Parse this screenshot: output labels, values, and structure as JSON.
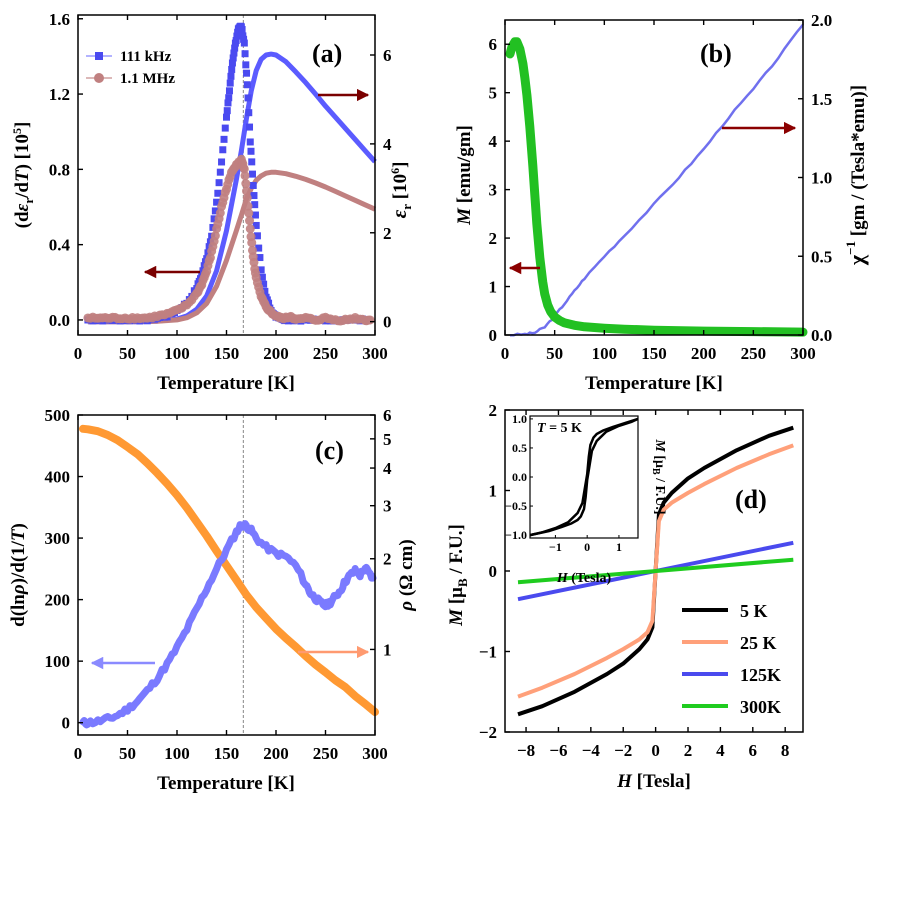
{
  "chart_data": [
    {
      "id": "a",
      "type": "scatter",
      "panel_label": "(a)",
      "xlabel": "Temperature [K]",
      "ylabel_left": "(dεr/dT) [10^5]",
      "ylabel_left_parts": [
        "(d",
        "ε",
        "r",
        "/d",
        "T",
        ") [10",
        "5",
        "]"
      ],
      "ylabel_right": "εr [10^6]",
      "ylabel_right_parts": [
        "ε",
        "r",
        " [10",
        "6",
        "]"
      ],
      "xlim": [
        0,
        300
      ],
      "ylim_left": [
        -0.08,
        1.62
      ],
      "ylim_right": [
        -0.3,
        6.9
      ],
      "xticks": [
        0,
        50,
        100,
        150,
        200,
        250,
        300
      ],
      "yticks_left": [
        "0.0",
        "0.4",
        "0.8",
        "1.2",
        "1.6"
      ],
      "yticks_right": [
        "0",
        "2",
        "4",
        "6"
      ],
      "vline_x": 167,
      "legend": [
        "111 kHz",
        "1.1 MHz"
      ],
      "colors": {
        "blue": "#5b5bff",
        "pink": "#c08080",
        "arrow": "#7a0000"
      },
      "series": [
        {
          "name": "111 kHz derivative",
          "axis": "left",
          "color": "#4a4af0",
          "marker": "square",
          "x": [
            10,
            20,
            30,
            40,
            50,
            60,
            70,
            80,
            90,
            100,
            110,
            120,
            125,
            130,
            135,
            140,
            145,
            150,
            153,
            156,
            159,
            162,
            165,
            168,
            171,
            174,
            177,
            180,
            185,
            190,
            195,
            200,
            205,
            210,
            220,
            230,
            240,
            250,
            260,
            270,
            280,
            290
          ],
          "y": [
            0.0,
            0.0,
            0.0,
            0.0,
            0.0,
            0.0,
            0.0,
            0.01,
            0.02,
            0.05,
            0.09,
            0.17,
            0.24,
            0.33,
            0.45,
            0.62,
            0.84,
            1.08,
            1.22,
            1.36,
            1.47,
            1.55,
            1.56,
            1.47,
            1.25,
            0.95,
            0.72,
            0.5,
            0.27,
            0.12,
            0.05,
            0.02,
            0.01,
            0.0,
            0.0,
            0.0,
            0.0,
            0.0,
            0.0,
            0.0,
            0.0,
            0.0
          ]
        },
        {
          "name": "1.1 MHz derivative",
          "axis": "left",
          "color": "#c08080",
          "marker": "circle",
          "x": [
            10,
            20,
            30,
            40,
            50,
            60,
            70,
            80,
            90,
            100,
            110,
            120,
            125,
            130,
            135,
            140,
            145,
            150,
            155,
            160,
            165,
            168,
            171,
            174,
            177,
            180,
            185,
            190,
            195,
            200,
            205,
            210,
            215,
            220,
            230,
            240,
            250,
            260,
            270,
            280,
            290,
            295
          ],
          "y": [
            0.01,
            0.01,
            0.01,
            0.01,
            0.01,
            0.01,
            0.01,
            0.02,
            0.03,
            0.05,
            0.08,
            0.14,
            0.19,
            0.26,
            0.36,
            0.48,
            0.6,
            0.7,
            0.78,
            0.83,
            0.85,
            0.8,
            0.65,
            0.48,
            0.33,
            0.22,
            0.12,
            0.07,
            0.04,
            0.02,
            0.01,
            0.01,
            0.02,
            0.0,
            0.01,
            0.0,
            0.01,
            0.0,
            0.0,
            0.01,
            0.0,
            0.0
          ]
        },
        {
          "name": "111 kHz εr",
          "axis": "right",
          "color": "#5b5bff",
          "marker": "line",
          "x": [
            10,
            50,
            80,
            100,
            110,
            120,
            130,
            140,
            150,
            160,
            165,
            170,
            175,
            180,
            185,
            190,
            195,
            200,
            210,
            220,
            230,
            240,
            250,
            260,
            270,
            280,
            290,
            300
          ],
          "y": [
            0.0,
            0.0,
            0.01,
            0.06,
            0.13,
            0.28,
            0.58,
            1.15,
            2.05,
            3.2,
            3.85,
            4.55,
            5.2,
            5.65,
            5.9,
            6.0,
            6.02,
            6.0,
            5.85,
            5.62,
            5.38,
            5.12,
            4.85,
            4.6,
            4.35,
            4.1,
            3.85,
            3.6
          ]
        },
        {
          "name": "1.1 MHz εr",
          "axis": "right",
          "color": "#c08080",
          "marker": "line",
          "x": [
            10,
            50,
            80,
            100,
            110,
            120,
            130,
            140,
            150,
            160,
            165,
            170,
            175,
            180,
            185,
            190,
            195,
            200,
            210,
            220,
            230,
            240,
            250,
            260,
            270,
            280,
            290,
            300
          ],
          "y": [
            0.0,
            0.0,
            0.01,
            0.04,
            0.09,
            0.2,
            0.41,
            0.8,
            1.38,
            2.05,
            2.4,
            2.75,
            3.0,
            3.18,
            3.28,
            3.34,
            3.36,
            3.36,
            3.33,
            3.27,
            3.2,
            3.12,
            3.03,
            2.93,
            2.83,
            2.73,
            2.63,
            2.53
          ]
        }
      ]
    },
    {
      "id": "b",
      "type": "line",
      "panel_label": "(b)",
      "xlabel": "Temperature [K]",
      "ylabel_left": "M [emu/gm]",
      "ylabel_right": "χ^-1 [gm / (Tesla*emu)]",
      "xlim": [
        0,
        300
      ],
      "ylim_left": [
        0,
        6.5
      ],
      "ylim_right": [
        0,
        2.0
      ],
      "xticks": [
        0,
        50,
        100,
        150,
        200,
        250,
        300
      ],
      "yticks_left": [
        "0",
        "1",
        "2",
        "3",
        "4",
        "5",
        "6"
      ],
      "yticks_right": [
        "0.0",
        "0.5",
        "1.0",
        "1.5",
        "2.0"
      ],
      "colors": {
        "green": "#22c022",
        "blue": "#7070ee",
        "arrow": "#8b0000"
      },
      "series": [
        {
          "name": "M",
          "axis": "left",
          "color": "#22c022",
          "x": [
            5,
            7,
            10,
            12,
            15,
            18,
            20,
            22,
            25,
            28,
            30,
            32,
            35,
            38,
            40,
            43,
            46,
            50,
            55,
            60,
            70,
            80,
            100,
            120,
            150,
            200,
            250,
            300
          ],
          "y": [
            5.8,
            5.95,
            6.05,
            6.05,
            5.9,
            5.6,
            5.3,
            4.95,
            4.3,
            3.5,
            2.9,
            2.3,
            1.6,
            1.1,
            0.85,
            0.62,
            0.48,
            0.37,
            0.3,
            0.25,
            0.2,
            0.17,
            0.14,
            0.12,
            0.1,
            0.08,
            0.07,
            0.06
          ]
        },
        {
          "name": "χ^-1",
          "axis": "right",
          "color": "#7070ee",
          "x": [
            5,
            20,
            30,
            40,
            50,
            60,
            70,
            80,
            100,
            120,
            150,
            175,
            200,
            225,
            250,
            275,
            300
          ],
          "y": [
            0.0,
            0.005,
            0.015,
            0.05,
            0.12,
            0.2,
            0.28,
            0.36,
            0.5,
            0.63,
            0.83,
            1.0,
            1.18,
            1.38,
            1.56,
            1.76,
            1.97
          ]
        }
      ]
    },
    {
      "id": "c",
      "type": "line",
      "panel_label": "(c)",
      "xlabel": "Temperature [K]",
      "ylabel_left": "d(lnρ)/d(1/T)",
      "ylabel_right": "ρ (Ω cm)",
      "xlim": [
        0,
        300
      ],
      "ylim_left": [
        -20,
        500
      ],
      "ylim_right_log": [
        0.52,
        6.0
      ],
      "xticks": [
        0,
        50,
        100,
        150,
        200,
        250,
        300
      ],
      "yticks_left": [
        "0",
        "100",
        "200",
        "300",
        "400",
        "500"
      ],
      "yticks_right": [
        "1",
        "2",
        "3",
        "4",
        "5",
        "6"
      ],
      "vline_x": 167,
      "colors": {
        "violet": "#7a7aff",
        "orange": "#ff9933"
      },
      "series": [
        {
          "name": "d(lnρ)/d(1/T)",
          "axis": "left",
          "color": "#7a7aff",
          "x": [
            5,
            10,
            20,
            30,
            40,
            50,
            60,
            70,
            80,
            90,
            100,
            110,
            120,
            130,
            140,
            150,
            160,
            165,
            170,
            175,
            180,
            190,
            200,
            210,
            220,
            230,
            235,
            240,
            245,
            250,
            255,
            260,
            265,
            270,
            275,
            280,
            285,
            290,
            295,
            298
          ],
          "y": [
            0,
            0,
            2,
            6,
            12,
            22,
            35,
            52,
            72,
            95,
            122,
            152,
            185,
            218,
            250,
            280,
            310,
            322,
            320,
            312,
            300,
            285,
            275,
            270,
            255,
            225,
            210,
            202,
            195,
            190,
            196,
            205,
            215,
            230,
            240,
            247,
            240,
            252,
            240,
            235
          ]
        },
        {
          "name": "ρ",
          "axis": "right",
          "color": "#ff9933",
          "x": [
            5,
            10,
            20,
            30,
            40,
            50,
            60,
            70,
            80,
            90,
            100,
            110,
            120,
            130,
            140,
            150,
            160,
            170,
            180,
            190,
            200,
            210,
            220,
            230,
            240,
            250,
            260,
            270,
            280,
            290,
            300
          ],
          "y": [
            5.4,
            5.38,
            5.3,
            5.15,
            4.95,
            4.7,
            4.45,
            4.15,
            3.85,
            3.55,
            3.25,
            2.95,
            2.65,
            2.38,
            2.12,
            1.9,
            1.7,
            1.52,
            1.38,
            1.27,
            1.17,
            1.09,
            1.02,
            0.95,
            0.89,
            0.84,
            0.79,
            0.75,
            0.7,
            0.66,
            0.62
          ]
        }
      ]
    },
    {
      "id": "d",
      "type": "line",
      "panel_label": "(d)",
      "xlabel": "H [Tesla]",
      "ylabel": "M [μB / F.U.]",
      "xlim": [
        -9.3,
        9.1
      ],
      "ylim": [
        -2,
        2
      ],
      "xticks": [
        "-8",
        "-6",
        "-4",
        "-2",
        "0",
        "2",
        "4",
        "6",
        "8"
      ],
      "yticks": [
        "-2",
        "-1",
        "0",
        "1",
        "2"
      ],
      "legend": [
        "5 K",
        "25 K",
        "125K",
        "300K"
      ],
      "series": [
        {
          "name": "5 K",
          "color": "#000000",
          "x": [
            -8.5,
            -7,
            -5,
            -3,
            -2,
            -1,
            -0.5,
            -0.2,
            0,
            0.2,
            0.5,
            1,
            2,
            3,
            5,
            7,
            8.5
          ],
          "y": [
            -1.78,
            -1.68,
            -1.5,
            -1.28,
            -1.15,
            -0.97,
            -0.85,
            -0.7,
            0,
            0.7,
            0.85,
            0.97,
            1.15,
            1.28,
            1.5,
            1.68,
            1.78
          ]
        },
        {
          "name": "25 K",
          "color": "#ffa07a",
          "x": [
            -8.5,
            -7,
            -5,
            -3,
            -2,
            -1,
            -0.5,
            -0.2,
            0,
            0.2,
            0.5,
            1,
            2,
            3,
            5,
            7,
            8.5
          ],
          "y": [
            -1.56,
            -1.45,
            -1.28,
            -1.08,
            -0.97,
            -0.85,
            -0.76,
            -0.62,
            0,
            0.62,
            0.76,
            0.85,
            0.97,
            1.08,
            1.28,
            1.45,
            1.56
          ]
        },
        {
          "name": "125K",
          "color": "#4a4aee",
          "x": [
            -8.5,
            8.5
          ],
          "y": [
            -0.35,
            0.35
          ]
        },
        {
          "name": "300K",
          "color": "#1fcc1f",
          "x": [
            -8.5,
            8.5
          ],
          "y": [
            -0.14,
            0.14
          ]
        }
      ],
      "inset": {
        "annotation": "T = 5 K",
        "xlabel": "H (Tesla)",
        "ylabel": "M [μB / F.U.]",
        "xlim": [
          -1.8,
          1.6
        ],
        "ylim": [
          -1.05,
          1.05
        ],
        "xticks": [
          "-1",
          "0",
          "1"
        ],
        "yticks": [
          "-1.0",
          "-0.5",
          "0.0",
          "0.5",
          "1.0"
        ],
        "color": "#000000",
        "upper": {
          "x": [
            -1.8,
            -1.4,
            -1.0,
            -0.6,
            -0.3,
            -0.15,
            0,
            0.05,
            0.1,
            0.2,
            0.3,
            0.5,
            0.8,
            1.2,
            1.6
          ],
          "y": [
            -1.0,
            -0.95,
            -0.88,
            -0.78,
            -0.62,
            -0.45,
            0.05,
            0.35,
            0.55,
            0.68,
            0.74,
            0.8,
            0.86,
            0.93,
            1.0
          ]
        },
        "lower": {
          "x": [
            -1.8,
            -1.2,
            -0.8,
            -0.5,
            -0.3,
            -0.2,
            -0.1,
            -0.05,
            0,
            0.15,
            0.3,
            0.6,
            1.0,
            1.4,
            1.6
          ],
          "y": [
            -1.0,
            -0.93,
            -0.86,
            -0.8,
            -0.74,
            -0.68,
            -0.55,
            -0.35,
            -0.05,
            0.45,
            0.62,
            0.78,
            0.88,
            0.95,
            1.0
          ]
        }
      }
    }
  ]
}
